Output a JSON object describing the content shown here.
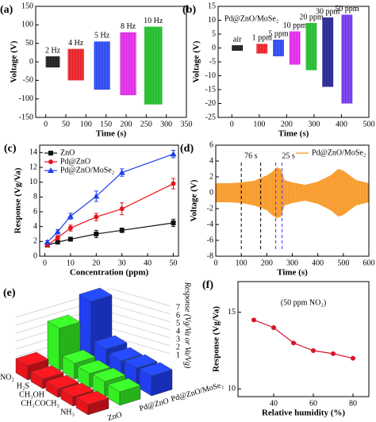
{
  "chart_data": [
    {
      "label": "(a)",
      "type": "range",
      "xlabel": "Time (s)",
      "ylabel": "Voltage (V)",
      "xlim": [
        -25,
        350
      ],
      "ylim": [
        -150,
        150
      ],
      "xticks": [
        0,
        50,
        100,
        150,
        200,
        250,
        300,
        350
      ],
      "yticks": [
        -150,
        -100,
        -50,
        0,
        50,
        100,
        150
      ],
      "series": [
        {
          "name": "2 Hz",
          "color": "#111111",
          "x": [
            0,
            35
          ],
          "values": [
            -15,
            15
          ]
        },
        {
          "name": "4 Hz",
          "color": "#e8141b",
          "x": [
            55,
            95
          ],
          "values": [
            -50,
            35
          ]
        },
        {
          "name": "5 Hz",
          "color": "#1f3ff0",
          "x": [
            120,
            160
          ],
          "values": [
            -75,
            55
          ]
        },
        {
          "name": "8 Hz",
          "color": "#e020e8",
          "x": [
            185,
            225
          ],
          "values": [
            -90,
            80
          ]
        },
        {
          "name": "10 Hz",
          "color": "#16b81e",
          "x": [
            245,
            290
          ],
          "values": [
            -115,
            95
          ]
        }
      ]
    },
    {
      "label": "(b)",
      "type": "range",
      "subtitle": "Pd@ZnO/MoSe₂",
      "xlabel": "Time (s)",
      "ylabel": "Voltage (V)",
      "xlim": [
        -50,
        500
      ],
      "ylim": [
        -25,
        15
      ],
      "xticks": [
        0,
        100,
        200,
        300,
        400,
        500
      ],
      "yticks": [
        -25,
        -20,
        -15,
        -10,
        -5,
        0,
        5,
        10,
        15
      ],
      "series": [
        {
          "name": "air",
          "color": "#111111",
          "x": [
            0,
            40
          ],
          "values": [
            -1,
            1
          ]
        },
        {
          "name": "1 ppm",
          "color": "#e8141b",
          "x": [
            90,
            130
          ],
          "values": [
            -2,
            1.5
          ]
        },
        {
          "name": "5 ppm",
          "color": "#1f3ff0",
          "x": [
            150,
            190
          ],
          "values": [
            -3,
            3
          ]
        },
        {
          "name": "10 ppm",
          "color": "#e020e8",
          "x": [
            210,
            250
          ],
          "values": [
            -6,
            6
          ]
        },
        {
          "name": "20 ppm",
          "color": "#16b81e",
          "x": [
            270,
            310
          ],
          "values": [
            -8,
            9
          ]
        },
        {
          "name": "30 ppm",
          "color": "#1a1a8c",
          "x": [
            330,
            370
          ],
          "values": [
            -14,
            11
          ]
        },
        {
          "name": "50 ppm",
          "color": "#6a2ee8",
          "x": [
            400,
            440
          ],
          "values": [
            -20,
            12
          ]
        }
      ]
    },
    {
      "label": "(c)",
      "type": "line",
      "xlabel": "Concentration (ppm)",
      "ylabel": "Response (Vg/Va)",
      "xlim": [
        -2,
        52
      ],
      "ylim": [
        0,
        15
      ],
      "xticks": [
        0,
        10,
        20,
        30,
        40,
        50
      ],
      "yticks": [
        0,
        2,
        4,
        6,
        8,
        10,
        12,
        14
      ],
      "legend": "upper left",
      "x": [
        1,
        5,
        10,
        20,
        30,
        50
      ],
      "series": [
        {
          "name": "ZnO",
          "color": "#111111",
          "marker": "square",
          "values": [
            1.5,
            1.9,
            2.3,
            3.0,
            3.5,
            4.5
          ],
          "errors": [
            0.15,
            0.2,
            0.25,
            0.5,
            0.3,
            0.5
          ]
        },
        {
          "name": "Pd@ZnO",
          "color": "#e8141b",
          "marker": "circle",
          "values": [
            1.5,
            2.5,
            3.8,
            5.3,
            6.4,
            9.8
          ],
          "errors": [
            0.2,
            0.3,
            0.4,
            0.5,
            0.8,
            0.7
          ]
        },
        {
          "name": "Pd@ZnO/MoSe₂",
          "color": "#1f3ff0",
          "marker": "triangle",
          "values": [
            1.9,
            3.3,
            5.4,
            8.1,
            11.3,
            13.8
          ],
          "errors": [
            0.2,
            0.3,
            0.4,
            0.7,
            0.5,
            0.5
          ]
        }
      ]
    },
    {
      "label": "(d)",
      "type": "area",
      "xlabel": "Time (s)",
      "ylabel": "Voltage (V)",
      "xlim": [
        0,
        600
      ],
      "ylim": [
        -8,
        6
      ],
      "xticks": [
        0,
        100,
        200,
        300,
        400,
        500,
        600
      ],
      "yticks": [
        -8,
        -6,
        -4,
        -2,
        0,
        2,
        4,
        6
      ],
      "legend": "upper right",
      "x": [
        0,
        50,
        100,
        150,
        200,
        220,
        240,
        255,
        270,
        300,
        350,
        400,
        450,
        480,
        500,
        550,
        600
      ],
      "series": [
        {
          "name": "Pd@ZnO/MoSe₂",
          "color": "#f7941d",
          "upper": [
            1.2,
            1.2,
            1.3,
            1.5,
            2.2,
            2.6,
            3.2,
            3.0,
            1.6,
            1.3,
            1.0,
            1.4,
            2.2,
            3.0,
            2.8,
            1.6,
            1.2
          ],
          "lower": [
            -1.2,
            -1.2,
            -1.3,
            -1.6,
            -2.2,
            -2.8,
            -3.2,
            -3.0,
            -1.6,
            -1.3,
            -1.0,
            -1.4,
            -2.2,
            -3.0,
            -2.8,
            -1.6,
            -1.2
          ]
        }
      ],
      "vlines": [
        100,
        176,
        235,
        260
      ],
      "vline_colors": [
        "#000000",
        "#000000",
        "#3333ff",
        "#3333ff"
      ],
      "annotations": [
        {
          "text": "76 s",
          "x": 138,
          "y": 4.6,
          "color": "#000000"
        },
        {
          "text": "25 s",
          "x": 285,
          "y": 4.6,
          "color": "#3333ff"
        }
      ]
    },
    {
      "label": "(e)",
      "type": "bar3d",
      "zlabel": "Response (Vg/Va or Va/Vg)",
      "zticks": [
        1,
        2,
        3,
        4,
        5,
        6,
        7
      ],
      "categories": [
        "NO₂",
        "H₂S",
        "CH₃OH",
        "CH₃COCH₃",
        "NH₃"
      ],
      "series": [
        {
          "name": "ZnO",
          "color": "#e8141b",
          "values": [
            1.8,
            1.2,
            1.1,
            1.2,
            1.3
          ]
        },
        {
          "name": "Pd@ZnO",
          "color": "#33ee22",
          "values": [
            5.3,
            2.0,
            1.8,
            1.9,
            1.7
          ]
        },
        {
          "name": "Pd@ZnO/MoSe₂",
          "color": "#1f3ff0",
          "values": [
            7.5,
            2.6,
            2.2,
            2.4,
            2.5
          ]
        }
      ]
    },
    {
      "label": "(f)",
      "type": "line",
      "xlabel": "Relative humidity (%)",
      "ylabel": "Response (Vg/Va)",
      "xlim": [
        22,
        88
      ],
      "ylim": [
        9.5,
        17
      ],
      "xticks": [
        40,
        60,
        80
      ],
      "yticks": [
        10,
        15
      ],
      "x": [
        30,
        40,
        50,
        60,
        70,
        80
      ],
      "series": [
        {
          "color": "#d9142a",
          "marker": "circle",
          "values": [
            14.5,
            14.0,
            13.0,
            12.5,
            12.3,
            12.0
          ]
        }
      ],
      "annotations": [
        {
          "text": "(50 ppm NO₂)",
          "x": 55,
          "y": 15.6,
          "color": "#000000"
        }
      ]
    }
  ]
}
